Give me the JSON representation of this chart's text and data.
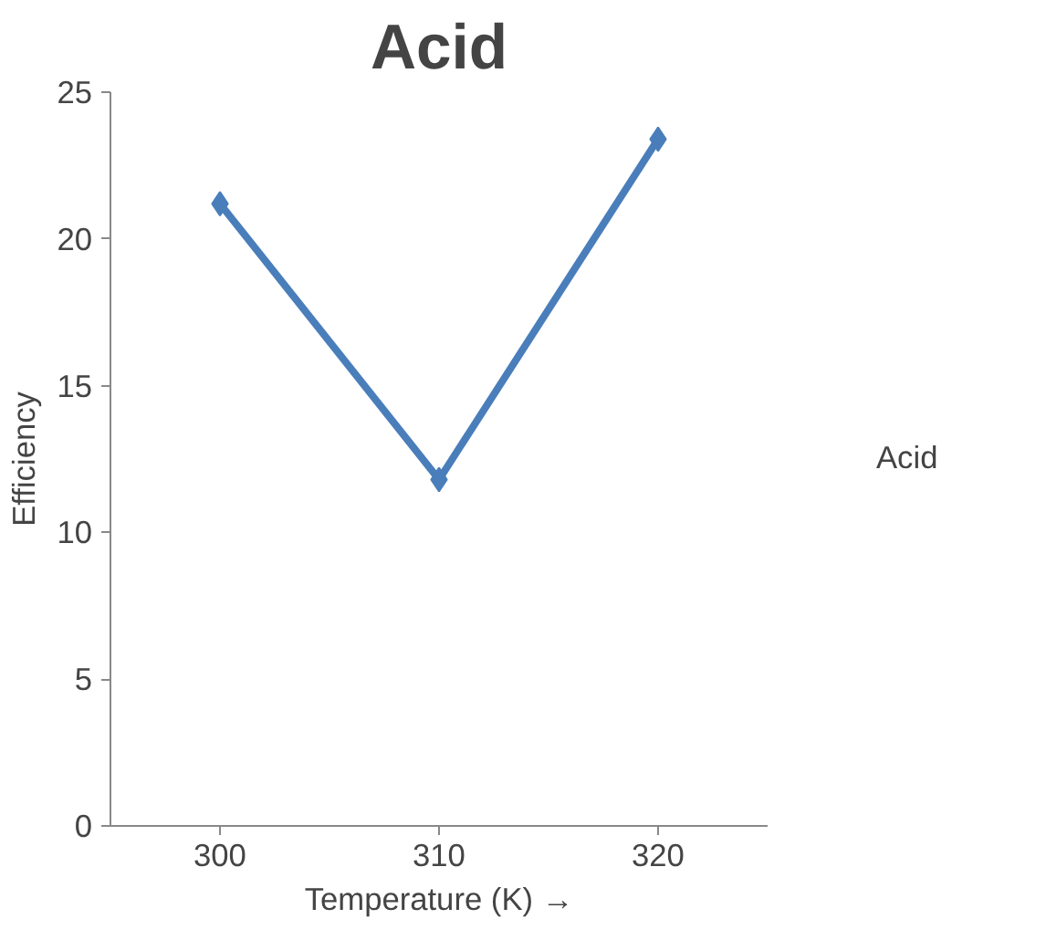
{
  "chart_data": {
    "type": "line",
    "title": "Acid",
    "xlabel": "Temperature (K) →",
    "ylabel": "Efficiency",
    "categories": [
      "300",
      "310",
      "320"
    ],
    "series": [
      {
        "name": "Acid",
        "color": "#4a7ebb",
        "values": [
          21.2,
          11.8,
          23.4
        ]
      }
    ],
    "ylim": [
      0,
      25
    ],
    "yticks": [
      0,
      5,
      10,
      15,
      20,
      25
    ],
    "grid": false,
    "legend": "right",
    "marker": "diamond",
    "line_style": "solid"
  }
}
